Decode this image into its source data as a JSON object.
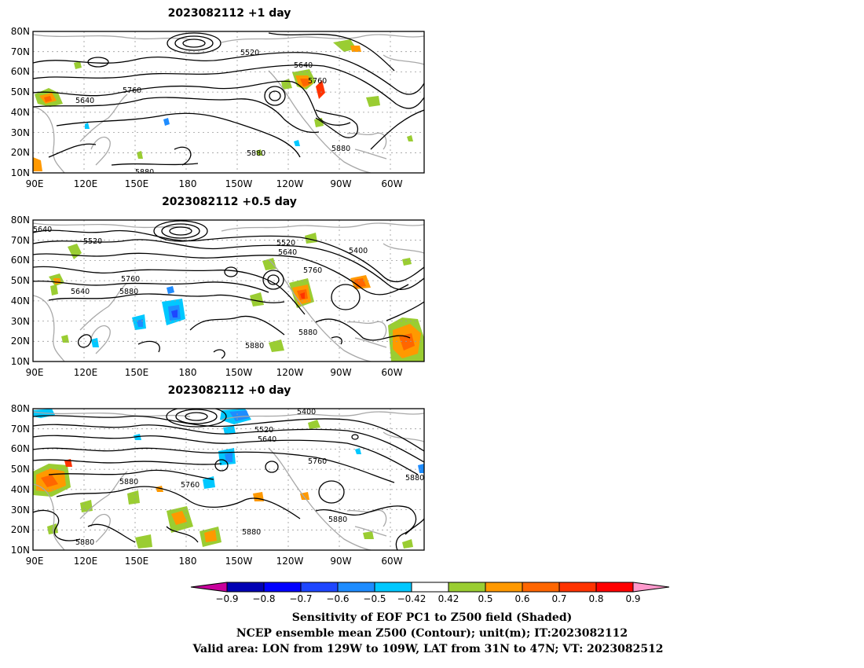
{
  "panels": [
    {
      "title": "2023082112  +1 day",
      "contour_labels": [
        "5520",
        "5640",
        "5760",
        "5640",
        "5760",
        "5880",
        "5880",
        "5880"
      ]
    },
    {
      "title": "2023082112  +0.5 day",
      "contour_labels": [
        "5640",
        "5520",
        "5520",
        "5640",
        "5400",
        "5760",
        "5760",
        "5640",
        "5880",
        "5880",
        "5880"
      ]
    },
    {
      "title": "2023082112  +0 day",
      "contour_labels": [
        "5400",
        "5520",
        "5640",
        "5760",
        "5880",
        "5880",
        "5760",
        "5880",
        "5880",
        "5880"
      ]
    }
  ],
  "axes": {
    "lat_labels": [
      "80N",
      "70N",
      "60N",
      "50N",
      "40N",
      "30N",
      "20N",
      "10N"
    ],
    "lon_labels": [
      "90E",
      "120E",
      "150E",
      "180",
      "150W",
      "120W",
      "90W",
      "60W"
    ]
  },
  "colorbar": {
    "colors": [
      "#c8009c",
      "#0000b4",
      "#0000ff",
      "#1e46ff",
      "#1e8cff",
      "#00c8ff",
      "#ffffff",
      "#9acd32",
      "#ff9900",
      "#ff6600",
      "#ff3300",
      "#ff0000",
      "#ff99cc"
    ],
    "tick_labels": [
      "−0.9",
      "−0.8",
      "−0.7",
      "−0.6",
      "−0.5",
      "−0.42",
      "0.42",
      "0.5",
      "0.6",
      "0.7",
      "0.8",
      "0.9"
    ]
  },
  "caption": {
    "line1": "Sensitivity of EOF PC1 to Z500 field (Shaded)",
    "line2": "NCEP ensemble mean Z500 (Contour); unit(m); IT:2023082112",
    "line3": "Valid area: LON from 129W to 109W, LAT from 31N to 47N; VT: 2023082512"
  },
  "colors": {
    "coastline": "#a8a8a8",
    "contour": "#000000",
    "gridline": "#9a9a9a"
  }
}
